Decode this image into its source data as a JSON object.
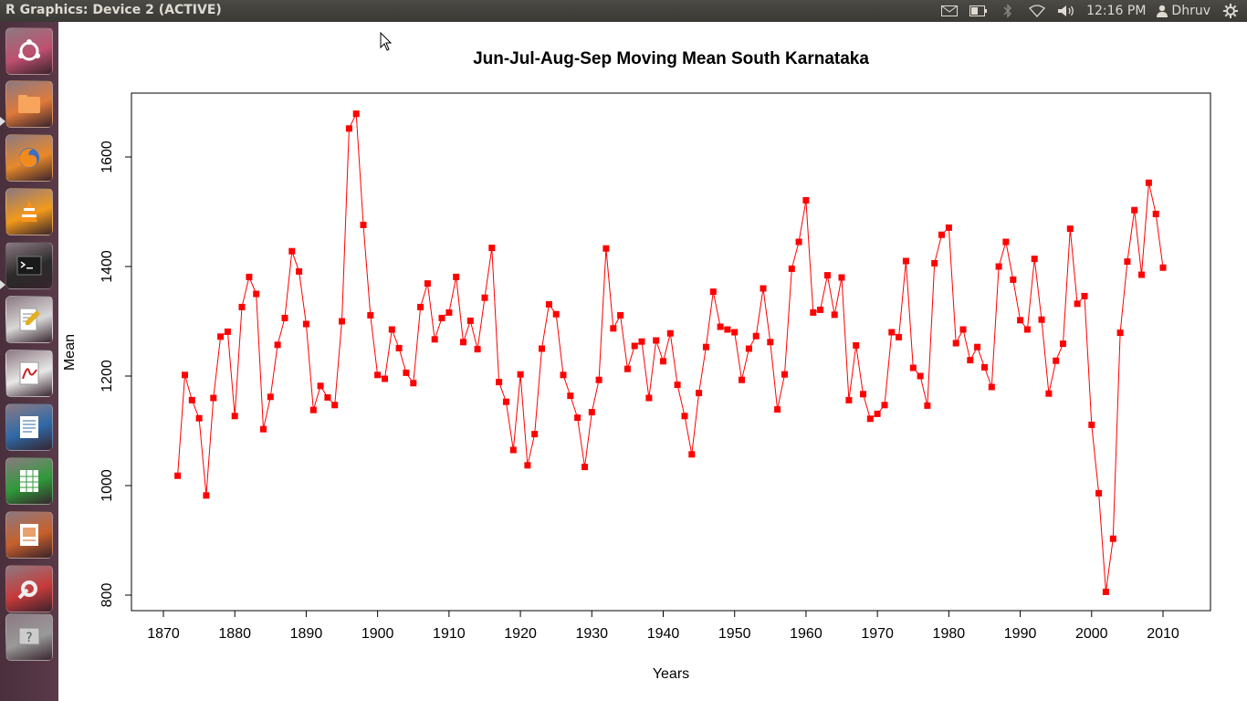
{
  "window": {
    "title": "R Graphics: Device 2 (ACTIVE)"
  },
  "tray": {
    "time": "12:16 PM",
    "user": "Dhruv"
  },
  "launcher": {
    "items": [
      {
        "name": "ubuntu-dash",
        "color": "#c0506f"
      },
      {
        "name": "files",
        "color": "#e07a3a"
      },
      {
        "name": "firefox",
        "color": "#e8892a"
      },
      {
        "name": "vlc",
        "color": "#f39a1a"
      },
      {
        "name": "terminal",
        "color": "#2b2b2b"
      },
      {
        "name": "text-editor",
        "color": "#d8d8d8"
      },
      {
        "name": "document-viewer",
        "color": "#e8e8e8"
      },
      {
        "name": "writer",
        "color": "#2f6aa8"
      },
      {
        "name": "calc",
        "color": "#2e9b3a"
      },
      {
        "name": "impress",
        "color": "#c8602a"
      },
      {
        "name": "system-settings",
        "color": "#c83a3a"
      },
      {
        "name": "help-stack",
        "color": "#9a9a9a"
      }
    ]
  },
  "chart_data": {
    "type": "line",
    "title": "Jun-Jul-Aug-Sep Moving Mean South Karnataka",
    "xlabel": "Years",
    "ylabel": "Mean",
    "xlim": [
      1868,
      2012
    ],
    "ylim": [
      795,
      1705
    ],
    "xticks": [
      1870,
      1880,
      1890,
      1900,
      1910,
      1920,
      1930,
      1940,
      1950,
      1960,
      1970,
      1980,
      1990,
      2000,
      2010
    ],
    "yticks": [
      800,
      1000,
      1200,
      1400,
      1600
    ],
    "color": "#ff0000",
    "marker": "square",
    "x": [
      1872,
      1873,
      1874,
      1875,
      1876,
      1877,
      1878,
      1879,
      1880,
      1881,
      1882,
      1883,
      1884,
      1885,
      1886,
      1887,
      1888,
      1889,
      1890,
      1891,
      1892,
      1893,
      1894,
      1895,
      1896,
      1897,
      1898,
      1899,
      1900,
      1901,
      1902,
      1903,
      1904,
      1905,
      1906,
      1907,
      1908,
      1909,
      1910,
      1911,
      1912,
      1913,
      1914,
      1915,
      1916,
      1917,
      1918,
      1919,
      1920,
      1921,
      1922,
      1923,
      1924,
      1925,
      1926,
      1927,
      1928,
      1929,
      1930,
      1931,
      1932,
      1933,
      1934,
      1935,
      1936,
      1937,
      1938,
      1939,
      1940,
      1941,
      1942,
      1943,
      1944,
      1945,
      1946,
      1947,
      1948,
      1949,
      1950,
      1951,
      1952,
      1953,
      1954,
      1955,
      1956,
      1957,
      1958,
      1959,
      1960,
      1961,
      1962,
      1963,
      1964,
      1965,
      1966,
      1967,
      1968,
      1969,
      1970,
      1971,
      1972,
      1973,
      1974,
      1975,
      1976,
      1977,
      1978,
      1979,
      1980,
      1981,
      1982,
      1983,
      1984,
      1985,
      1986,
      1987,
      1988,
      1989,
      1990,
      1991,
      1992,
      1993,
      1994,
      1995,
      1996,
      1997,
      1998,
      1999,
      2000,
      2001,
      2002,
      2003,
      2004,
      2005,
      2006,
      2007,
      2008,
      2009,
      2010
    ],
    "values": [
      1018,
      1202,
      1156,
      1123,
      982,
      1160,
      1272,
      1281,
      1127,
      1326,
      1381,
      1350,
      1103,
      1162,
      1257,
      1306,
      1428,
      1391,
      1295,
      1138,
      1182,
      1161,
      1147,
      1300,
      1652,
      1679,
      1476,
      1311,
      1202,
      1195,
      1285,
      1251,
      1206,
      1187,
      1326,
      1369,
      1267,
      1306,
      1316,
      1381,
      1262,
      1301,
      1249,
      1343,
      1434,
      1189,
      1153,
      1065,
      1203,
      1037,
      1094,
      1250,
      1331,
      1313,
      1202,
      1164,
      1124,
      1034,
      1134,
      1193,
      1433,
      1287,
      1311,
      1213,
      1255,
      1263,
      1160,
      1265,
      1227,
      1278,
      1184,
      1127,
      1057,
      1169,
      1253,
      1354,
      1290,
      1285,
      1280,
      1193,
      1250,
      1273,
      1360,
      1262,
      1139,
      1203,
      1396,
      1445,
      1521,
      1316,
      1321,
      1384,
      1312,
      1380,
      1156,
      1256,
      1167,
      1122,
      1131,
      1147,
      1280,
      1271,
      1410,
      1215,
      1200,
      1146,
      1406,
      1458,
      1471,
      1260,
      1285,
      1229,
      1253,
      1216,
      1180,
      1400,
      1445,
      1376,
      1302,
      1285,
      1414,
      1303,
      1168,
      1228,
      1259,
      1469,
      1332,
      1346,
      1111,
      986,
      806,
      903,
      1279,
      1409,
      1503,
      1385,
      1553,
      1496,
      1398
    ]
  }
}
